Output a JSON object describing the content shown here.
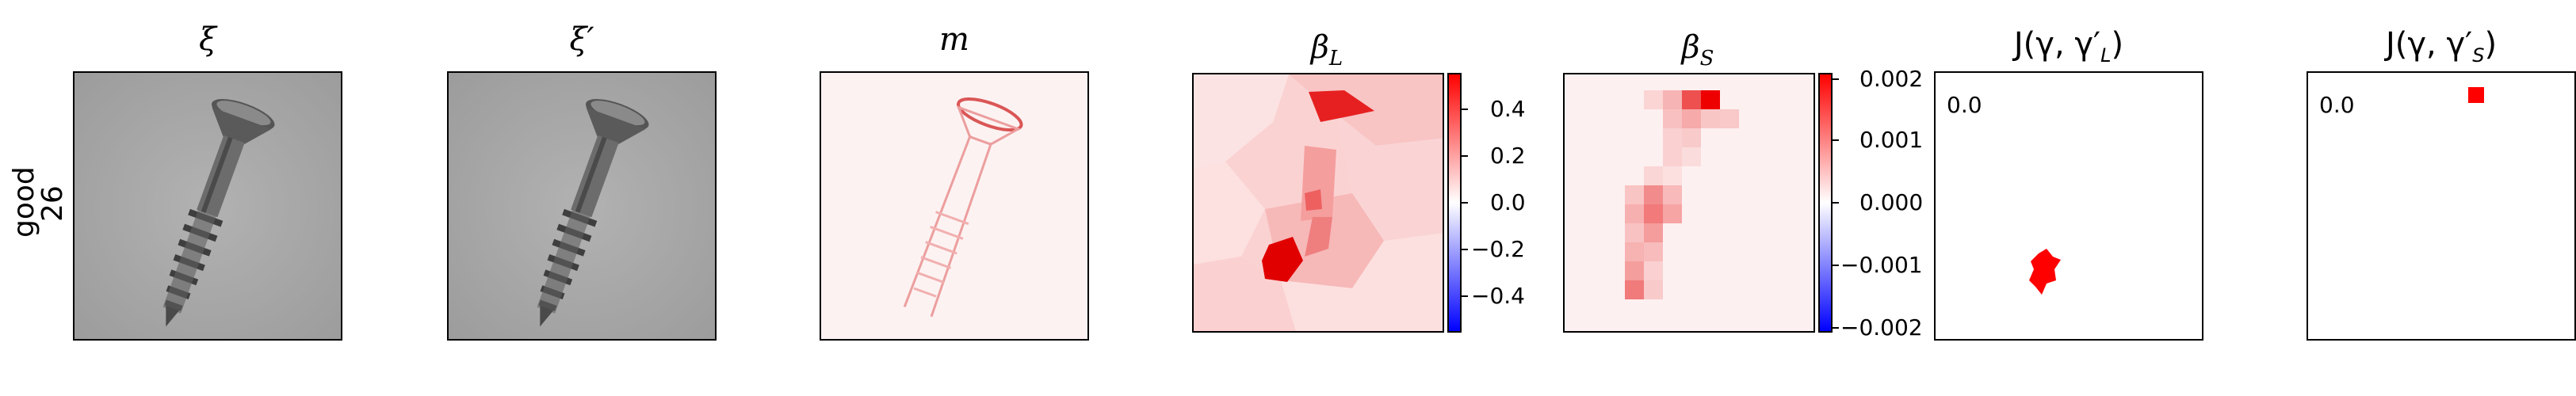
{
  "row_label": {
    "line1": "good",
    "line2": "26"
  },
  "panels": [
    {
      "key": "xi",
      "title": "ξ"
    },
    {
      "key": "xi_prime",
      "title": "ξ′"
    },
    {
      "key": "m",
      "title": "m"
    },
    {
      "key": "beta_L",
      "title": "β",
      "subscript": "L"
    },
    {
      "key": "beta_S",
      "title": "β",
      "subscript": "S"
    },
    {
      "key": "J_L",
      "title": "J(γ, γ′",
      "subscript": "L",
      "suffix": ")"
    },
    {
      "key": "J_S",
      "title": "J(γ, γ′",
      "subscript": "S",
      "suffix": ")"
    }
  ],
  "colorbars": {
    "beta_L": {
      "ticks": [
        "0.4",
        "0.2",
        "0.0",
        "−0.2",
        "−0.4"
      ],
      "colormap": "bwr"
    },
    "beta_S": {
      "ticks": [
        "0.002",
        "0.001",
        "0.000",
        "−0.001",
        "−0.002"
      ],
      "colormap": "bwr"
    }
  },
  "j_values": {
    "J_L": "0.0",
    "J_S": "0.0"
  },
  "colors": {
    "red": "#ff0000",
    "blue": "#0000ff",
    "gray_bg": "#a9a9a9"
  }
}
